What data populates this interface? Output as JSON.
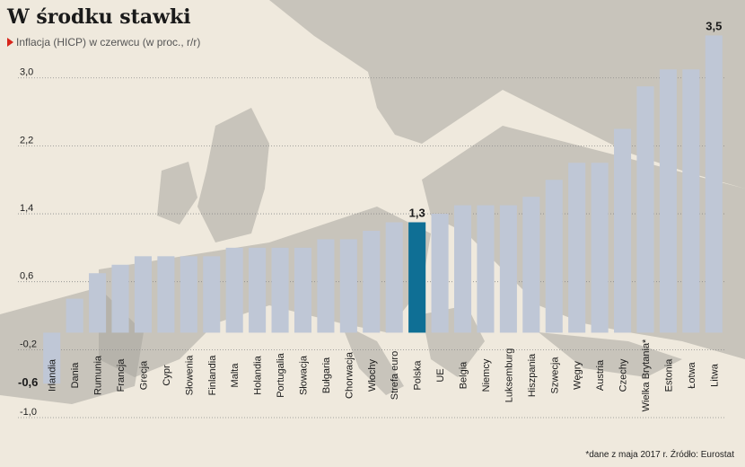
{
  "title": "W środku stawki",
  "subtitle": "Inflacja (HICP) w czerwcu (w proc., r/r)",
  "footnote": "*dane z maja 2017 r. Źródło: Eurostat",
  "colors": {
    "bar": "#bfc7d6",
    "highlight": "#0f6f95",
    "background": "#efe9dd",
    "land": "#a8a59e",
    "grid": "#8a8a8a"
  },
  "chart_data": {
    "type": "bar",
    "title": "W środku stawki",
    "subtitle": "Inflacja (HICP) w czerwcu (w proc., r/r)",
    "ylim": [
      -1.0,
      3.6
    ],
    "yticks": [
      "3,0",
      "2,2",
      "1,4",
      "0,6",
      "-0,2",
      "-1,0"
    ],
    "ytick_values": [
      3.0,
      2.2,
      1.4,
      0.6,
      -0.2,
      -1.0
    ],
    "grid": true,
    "categories": [
      "Irlandia",
      "Dania",
      "Rumunia",
      "Francja",
      "Grecja",
      "Cypr",
      "Słowenia",
      "Finlandia",
      "Malta",
      "Holandia",
      "Portugalia",
      "Słowacja",
      "Bułgaria",
      "Chorwacja",
      "Włochy",
      "Strefa euro",
      "Polska",
      "UE",
      "Belgia",
      "Niemcy",
      "Luksemburg",
      "Hiszpania",
      "Szwecja",
      "Węgry",
      "Austria",
      "Czechy",
      "Wielka Brytania*",
      "Estonia",
      "Łotwa",
      "Litwa"
    ],
    "values": [
      -0.6,
      0.4,
      0.7,
      0.8,
      0.9,
      0.9,
      0.9,
      0.9,
      1.0,
      1.0,
      1.0,
      1.0,
      1.1,
      1.1,
      1.2,
      1.3,
      1.3,
      1.4,
      1.5,
      1.5,
      1.5,
      1.6,
      1.8,
      2.0,
      2.0,
      2.4,
      2.9,
      3.1,
      3.1,
      3.5
    ],
    "highlight": "Polska",
    "value_labels": {
      "Irlandia": "-0,6",
      "Polska": "1,3",
      "Litwa": "3,5"
    }
  }
}
